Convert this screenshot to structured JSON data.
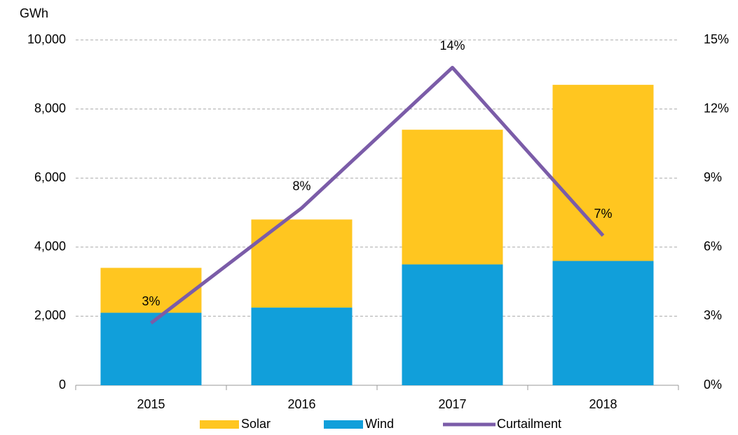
{
  "chart_data": {
    "type": "bar_line",
    "y_label": "GWh",
    "categories": [
      "2015",
      "2016",
      "2017",
      "2018"
    ],
    "series": [
      {
        "name": "Solar",
        "color": "#ffc620",
        "type": "bar",
        "values": [
          1300,
          2550,
          3900,
          5100
        ]
      },
      {
        "name": "Wind",
        "color": "#119fda",
        "type": "bar",
        "values": [
          2100,
          2250,
          3500,
          3600
        ]
      },
      {
        "name": "Curtailment",
        "color": "#7b5ca8",
        "type": "line",
        "axis": "y2",
        "values": [
          2.7,
          7.7,
          13.8,
          6.5
        ],
        "value_labels": [
          "3%",
          "8%",
          "14%",
          "7%"
        ]
      }
    ],
    "ylim": [
      0,
      10000
    ],
    "yticks": [
      0,
      {
        "value": 2000,
        "label": "2,000"
      },
      {
        "value": 4000,
        "label": "4,000"
      },
      {
        "value": 6000,
        "label": "6,000"
      },
      {
        "value": 8000,
        "label": "8,000"
      },
      {
        "value": 10000,
        "label": "10,000"
      }
    ],
    "y2lim": [
      0,
      15
    ],
    "y2ticks": [
      {
        "value": 0,
        "label": "0%"
      },
      {
        "value": 3,
        "label": "3%"
      },
      {
        "value": 6,
        "label": "6%"
      },
      {
        "value": 9,
        "label": "9%"
      },
      {
        "value": 12,
        "label": "12%"
      },
      {
        "value": 15,
        "label": "15%"
      }
    ],
    "grid": true,
    "legend": "bottom"
  }
}
